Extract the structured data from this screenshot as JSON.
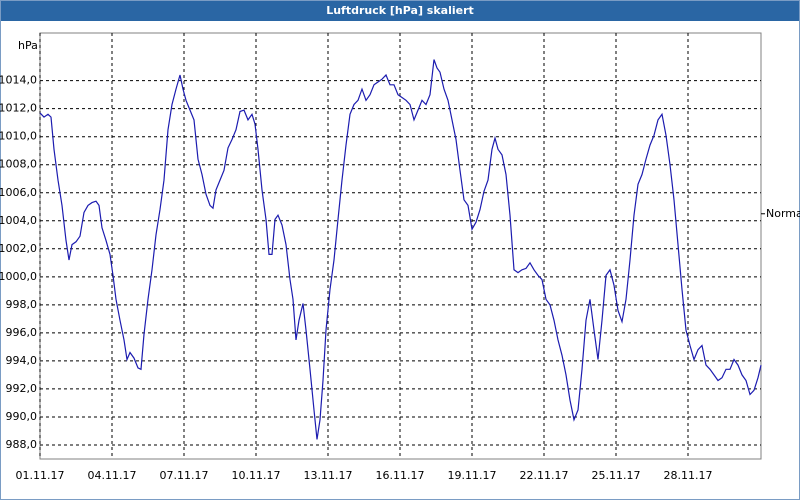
{
  "chart_data": {
    "type": "line",
    "title": "Luftdruck [hPa] skaliert",
    "y_label": "hPa",
    "annotation": {
      "text": "Normal",
      "y": 1004.5
    },
    "grid": true,
    "ylim": [
      987,
      1017.4
    ],
    "yticks": [
      {
        "value": 988,
        "label": "988,0"
      },
      {
        "value": 990,
        "label": "990,0"
      },
      {
        "value": 992,
        "label": "992,0"
      },
      {
        "value": 994,
        "label": "994,0"
      },
      {
        "value": 996,
        "label": "996,0"
      },
      {
        "value": 998,
        "label": "998,0"
      },
      {
        "value": 1000,
        "label": "1000,0"
      },
      {
        "value": 1002,
        "label": "1002,0"
      },
      {
        "value": 1004,
        "label": "1004,0"
      },
      {
        "value": 1006,
        "label": "1006,0"
      },
      {
        "value": 1008,
        "label": "1008,0"
      },
      {
        "value": 1010,
        "label": "1010,0"
      },
      {
        "value": 1012,
        "label": "1012,0"
      },
      {
        "value": 1014,
        "label": "1014,0"
      }
    ],
    "xlim": [
      0,
      721
    ],
    "xticks": [
      {
        "value": 0,
        "label": "01.11.17"
      },
      {
        "value": 72,
        "label": "04.11.17"
      },
      {
        "value": 144,
        "label": "07.11.17"
      },
      {
        "value": 216,
        "label": "10.11.17"
      },
      {
        "value": 288,
        "label": "13.11.17"
      },
      {
        "value": 360,
        "label": "16.11.17"
      },
      {
        "value": 432,
        "label": "19.11.17"
      },
      {
        "value": 504,
        "label": "22.11.17"
      },
      {
        "value": 576,
        "label": "25.11.17"
      },
      {
        "value": 648,
        "label": "28.11.17"
      }
    ],
    "series": [
      {
        "color": "#1c1cb0",
        "x": [
          0,
          4,
          8,
          11,
          14,
          18,
          22,
          26,
          29,
          32,
          36,
          40,
          44,
          48,
          52,
          56,
          59,
          62,
          66,
          70,
          73,
          76,
          80,
          84,
          87,
          90,
          94,
          98,
          101,
          104,
          108,
          112,
          116,
          120,
          124,
          128,
          132,
          136,
          140,
          143,
          146,
          150,
          154,
          158,
          162,
          166,
          170,
          173,
          176,
          180,
          184,
          188,
          192,
          196,
          200,
          204,
          208,
          212,
          215,
          218,
          222,
          226,
          229,
          232,
          235,
          238,
          242,
          246,
          250,
          253,
          256,
          259,
          263,
          266,
          270,
          274,
          277,
          280,
          283,
          286,
          290,
          294,
          298,
          302,
          306,
          310,
          314,
          318,
          322,
          326,
          330,
          334,
          338,
          342,
          346,
          350,
          354,
          358,
          362,
          366,
          370,
          374,
          378,
          382,
          386,
          390,
          394,
          397,
          400,
          404,
          408,
          412,
          416,
          420,
          424,
          428,
          432,
          436,
          440,
          444,
          448,
          452,
          455,
          458,
          462,
          466,
          470,
          474,
          478,
          482,
          486,
          490,
          494,
          498,
          502,
          506,
          510,
          514,
          518,
          522,
          526,
          530,
          534,
          538,
          542,
          546,
          550,
          554,
          558,
          562,
          566,
          570,
          574,
          578,
          582,
          586,
          590,
          594,
          598,
          602,
          606,
          610,
          614,
          618,
          622,
          626,
          630,
          634,
          638,
          642,
          646,
          650,
          654,
          658,
          662,
          666,
          670,
          674,
          678,
          682,
          686,
          690,
          694,
          698,
          702,
          706,
          710,
          714,
          718,
          721
        ],
        "values": [
          1011.7,
          1011.4,
          1011.6,
          1011.4,
          1009.1,
          1006.9,
          1005.1,
          1002.6,
          1001.2,
          1002.3,
          1002.5,
          1002.9,
          1004.6,
          1005.1,
          1005.3,
          1005.4,
          1005.1,
          1003.5,
          1002.6,
          1001.6,
          1000.1,
          998.4,
          996.9,
          995.5,
          994.1,
          994.6,
          994.2,
          993.5,
          993.4,
          995.9,
          998.4,
          1000.5,
          1003.0,
          1004.8,
          1006.9,
          1010.5,
          1012.3,
          1013.4,
          1014.4,
          1013.4,
          1012.6,
          1011.9,
          1011.2,
          1008.4,
          1007.3,
          1005.9,
          1005.1,
          1004.9,
          1006.2,
          1006.9,
          1007.6,
          1009.2,
          1009.8,
          1010.5,
          1011.8,
          1011.9,
          1011.2,
          1011.6,
          1010.9,
          1009.1,
          1006.2,
          1004.1,
          1001.6,
          1001.6,
          1004.1,
          1004.4,
          1003.7,
          1002.3,
          999.8,
          998.4,
          995.5,
          996.9,
          998.1,
          996.2,
          993.4,
          990.5,
          988.4,
          989.8,
          992.6,
          996.2,
          999.1,
          1001.2,
          1004.1,
          1006.9,
          1009.4,
          1011.6,
          1012.3,
          1012.6,
          1013.4,
          1012.6,
          1013.0,
          1013.7,
          1013.9,
          1014.1,
          1014.4,
          1013.7,
          1013.7,
          1013.0,
          1012.8,
          1012.6,
          1012.3,
          1011.2,
          1011.9,
          1012.6,
          1012.3,
          1013.0,
          1015.5,
          1014.9,
          1014.6,
          1013.4,
          1012.6,
          1011.2,
          1009.8,
          1007.6,
          1005.5,
          1005.1,
          1003.4,
          1003.9,
          1004.8,
          1006.1,
          1006.9,
          1009.1,
          1009.9,
          1009.1,
          1008.7,
          1007.3,
          1004.4,
          1000.5,
          1000.3,
          1000.5,
          1000.6,
          1001.0,
          1000.5,
          1000.1,
          999.8,
          998.4,
          998.0,
          996.9,
          995.5,
          994.4,
          993.0,
          991.2,
          989.8,
          990.5,
          993.4,
          996.9,
          998.4,
          996.2,
          994.1,
          996.9,
          1000.1,
          1000.5,
          999.4,
          997.6,
          996.8,
          998.4,
          1001.2,
          1004.4,
          1006.6,
          1007.3,
          1008.4,
          1009.4,
          1010.1,
          1011.2,
          1011.6,
          1010.1,
          1008.0,
          1005.5,
          1002.3,
          999.1,
          996.2,
          995.1,
          994.1,
          994.8,
          995.1,
          993.7,
          993.4,
          993.0,
          992.6,
          992.8,
          993.4,
          993.4,
          994.1,
          993.7,
          993.0,
          992.6,
          991.6,
          991.9,
          992.8,
          993.7
        ]
      }
    ]
  }
}
